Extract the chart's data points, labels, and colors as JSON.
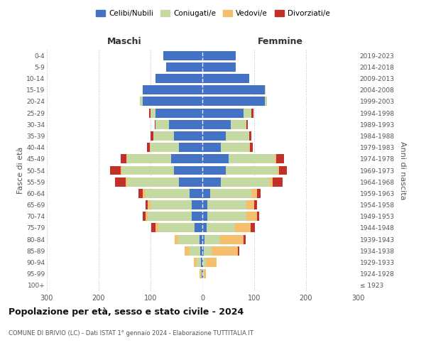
{
  "age_groups": [
    "100+",
    "95-99",
    "90-94",
    "85-89",
    "80-84",
    "75-79",
    "70-74",
    "65-69",
    "60-64",
    "55-59",
    "50-54",
    "45-49",
    "40-44",
    "35-39",
    "30-34",
    "25-29",
    "20-24",
    "15-19",
    "10-14",
    "5-9",
    "0-4"
  ],
  "birth_years": [
    "≤ 1923",
    "1924-1928",
    "1929-1933",
    "1934-1938",
    "1939-1943",
    "1944-1948",
    "1949-1953",
    "1954-1958",
    "1959-1963",
    "1964-1968",
    "1969-1973",
    "1974-1978",
    "1979-1983",
    "1984-1988",
    "1989-1993",
    "1994-1998",
    "1999-2003",
    "2004-2008",
    "2009-2013",
    "2014-2018",
    "2019-2023"
  ],
  "male": {
    "celibi": [
      0,
      1,
      3,
      4,
      6,
      15,
      20,
      20,
      25,
      45,
      55,
      60,
      45,
      55,
      65,
      90,
      115,
      115,
      90,
      70,
      75
    ],
    "coniugati": [
      0,
      2,
      8,
      20,
      40,
      70,
      85,
      80,
      85,
      100,
      100,
      85,
      55,
      40,
      25,
      10,
      5,
      0,
      0,
      0,
      0
    ],
    "vedovi": [
      0,
      2,
      5,
      10,
      8,
      5,
      5,
      5,
      5,
      3,
      3,
      2,
      2,
      0,
      0,
      0,
      0,
      0,
      0,
      0,
      0
    ],
    "divorziati": [
      0,
      0,
      0,
      0,
      0,
      8,
      5,
      5,
      8,
      20,
      20,
      10,
      5,
      5,
      2,
      3,
      0,
      0,
      0,
      0,
      0
    ]
  },
  "female": {
    "nubili": [
      0,
      1,
      2,
      3,
      4,
      8,
      10,
      10,
      15,
      35,
      45,
      50,
      35,
      45,
      55,
      80,
      120,
      120,
      90,
      65,
      65
    ],
    "coniugate": [
      0,
      2,
      5,
      15,
      30,
      55,
      75,
      75,
      80,
      95,
      100,
      90,
      55,
      45,
      30,
      15,
      5,
      2,
      0,
      0,
      0
    ],
    "vedove": [
      0,
      4,
      20,
      50,
      45,
      30,
      20,
      15,
      10,
      5,
      3,
      2,
      2,
      0,
      0,
      0,
      0,
      0,
      0,
      0,
      0
    ],
    "divorziate": [
      0,
      0,
      0,
      3,
      5,
      8,
      5,
      5,
      8,
      20,
      15,
      15,
      5,
      5,
      3,
      3,
      0,
      0,
      0,
      0,
      0
    ]
  },
  "colors": {
    "celibi_nubili": "#4472c4",
    "coniugati": "#c5d9a3",
    "vedovi": "#f4c06e",
    "divorziati": "#c0312b"
  },
  "xlim": 300,
  "title": "Popolazione per età, sesso e stato civile - 2024",
  "subtitle": "COMUNE DI BRIVIO (LC) - Dati ISTAT 1° gennaio 2024 - Elaborazione TUTTITALIA.IT",
  "ylabel_left": "Fasce di età",
  "ylabel_right": "Anni di nascita",
  "xlabel_left": "Maschi",
  "xlabel_right": "Femmine",
  "legend_labels": [
    "Celibi/Nubili",
    "Coniugati/e",
    "Vedovi/e",
    "Divorziati/e"
  ],
  "background_color": "#ffffff",
  "grid_color": "#cccccc"
}
